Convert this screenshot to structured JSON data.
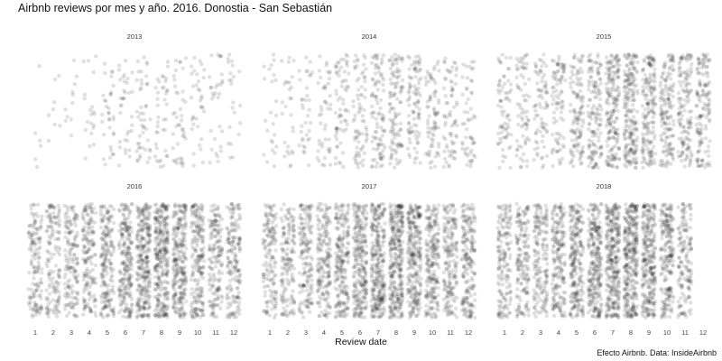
{
  "page": {
    "title": "Airbnb reviews por mes y año. 2016. Donostia - San Sebastián",
    "caption": "Efecto Airbnb. Data: InsideAirbnb"
  },
  "chart_data": {
    "type": "scatter",
    "subtype": "jitter strip plot, faceted by year",
    "title": "Airbnb reviews por mes y año. 2016. Donostia - San Sebastián",
    "xlabel": "Review date",
    "ylabel": "",
    "x_categories": [
      "1",
      "2",
      "3",
      "4",
      "5",
      "6",
      "7",
      "8",
      "9",
      "10",
      "11",
      "12"
    ],
    "point_color": "#000000",
    "point_alpha": 0.12,
    "grid": false,
    "legend": "none",
    "facets": [
      {
        "year": "2013",
        "relative_density": [
          0.05,
          0.07,
          0.1,
          0.18,
          0.3,
          0.32,
          0.42,
          0.35,
          0.38,
          0.32,
          0.28,
          0.2
        ]
      },
      {
        "year": "2014",
        "relative_density": [
          0.22,
          0.25,
          0.32,
          0.42,
          0.6,
          0.68,
          0.9,
          1.0,
          0.85,
          0.72,
          0.65,
          0.5
        ]
      },
      {
        "year": "2015",
        "relative_density": [
          0.65,
          0.65,
          0.7,
          0.82,
          1.1,
          1.3,
          1.7,
          1.9,
          1.6,
          1.4,
          1.3,
          1.3
        ]
      },
      {
        "year": "2016",
        "relative_density": [
          1.3,
          1.3,
          1.4,
          1.5,
          1.8,
          2.1,
          2.6,
          2.8,
          2.4,
          1.9,
          1.5,
          1.6
        ]
      },
      {
        "year": "2017",
        "relative_density": [
          1.4,
          1.4,
          1.5,
          1.7,
          2.0,
          2.4,
          2.7,
          2.9,
          2.5,
          2.0,
          1.7,
          1.8
        ]
      },
      {
        "year": "2018",
        "relative_density": [
          1.5,
          1.5,
          1.6,
          1.8,
          2.2,
          2.5,
          2.9,
          3.0,
          2.6,
          2.0,
          1.4,
          0.0
        ]
      }
    ]
  }
}
